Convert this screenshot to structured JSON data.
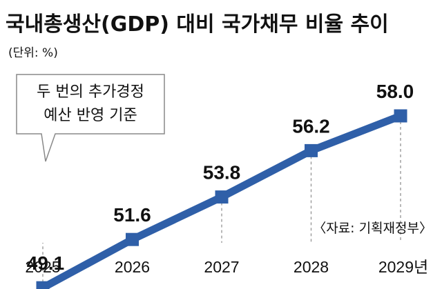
{
  "chart_data": {
    "type": "line",
    "title": "국내총생산(GDP) 대비 국가채무 비율 추이",
    "unit_label": "(단위: %)",
    "categories": [
      "2025",
      "2026",
      "2027",
      "2028",
      "2029년"
    ],
    "values": [
      49.1,
      51.6,
      53.8,
      56.2,
      58.0
    ],
    "value_labels": [
      "49.1",
      "51.6",
      "53.8",
      "56.2",
      "58.0"
    ],
    "ylim": [
      42,
      64
    ],
    "grid": false,
    "annotation": {
      "lines": [
        "두 번의 추가경정",
        "예산 반영 기준"
      ],
      "target_category": "2025"
    },
    "source": "〈자료: 기획재정부〉",
    "colors": {
      "line": "#2f5fa8",
      "marker": "#2f5fa8",
      "guide": "#9a9a9a",
      "background": "#ffffff",
      "text": "#111111",
      "callout_border": "#888888"
    }
  }
}
